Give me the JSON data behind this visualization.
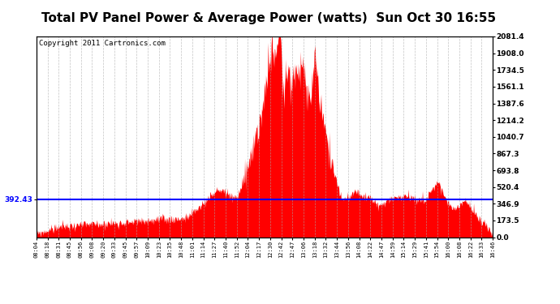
{
  "title": "Total PV Panel Power & Average Power (watts)  Sun Oct 30 16:55",
  "copyright": "Copyright 2011 Cartronics.com",
  "avg_power": 392.43,
  "ymax": 2081.4,
  "ymin": 0.0,
  "yticks_right": [
    0.0,
    173.5,
    346.9,
    520.4,
    693.8,
    867.3,
    1040.7,
    1214.2,
    1387.6,
    1561.1,
    1734.5,
    1908.0,
    2081.4
  ],
  "ytick_left": 392.43,
  "x_labels": [
    "08:04",
    "08:18",
    "08:31",
    "08:45",
    "08:56",
    "09:08",
    "09:20",
    "09:33",
    "09:45",
    "09:57",
    "10:09",
    "10:23",
    "10:35",
    "10:48",
    "11:01",
    "11:14",
    "11:27",
    "11:40",
    "11:52",
    "12:04",
    "12:17",
    "12:30",
    "12:42",
    "12:47",
    "13:06",
    "13:18",
    "13:32",
    "13:44",
    "13:56",
    "14:08",
    "14:22",
    "14:47",
    "14:59",
    "15:14",
    "15:29",
    "15:41",
    "15:54",
    "16:00",
    "16:08",
    "16:22",
    "16:33",
    "16:46"
  ],
  "fill_color": "#FF0000",
  "line_color": "#0000FF",
  "bg_color": "#FFFFFF",
  "grid_color": "#AAAAAA",
  "title_fontsize": 11,
  "copyright_fontsize": 6.5
}
